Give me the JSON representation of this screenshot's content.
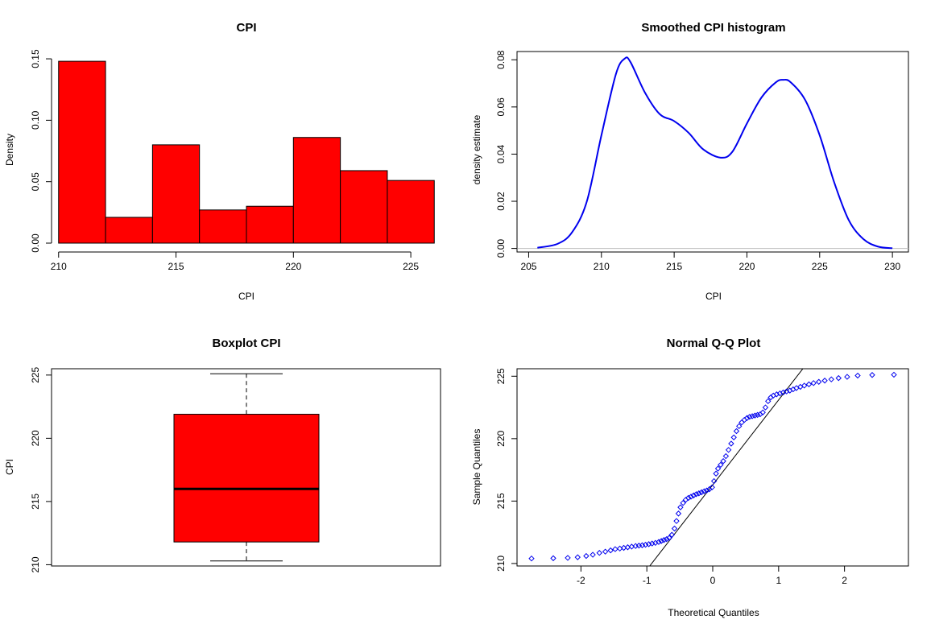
{
  "colors": {
    "bar_fill": "#ff0000",
    "density_line": "#0000ee",
    "qq_points": "#0000ee",
    "zero_line": "#bebebe"
  },
  "chart_data": [
    {
      "type": "bar",
      "title": "CPI",
      "xlabel": "CPI",
      "ylabel": "Density",
      "bin_edges": [
        210,
        212,
        214,
        216,
        218,
        220,
        222,
        224,
        226
      ],
      "values": [
        0.148,
        0.021,
        0.08,
        0.027,
        0.03,
        0.086,
        0.059,
        0.051
      ],
      "xticks": [
        210,
        215,
        220,
        225
      ],
      "yticks": [
        0.0,
        0.05,
        0.1,
        0.15
      ],
      "ytick_labels": [
        "0.00",
        "0.05",
        "0.10",
        "0.15"
      ],
      "xlim": [
        209.7,
        226.3
      ],
      "ylim": [
        0,
        0.152
      ]
    },
    {
      "type": "line",
      "title": "Smoothed CPI histogram",
      "xlabel": "CPI",
      "ylabel": "density estimate",
      "x": [
        205.6,
        207,
        208,
        209,
        210,
        211,
        211.6,
        212,
        213,
        214,
        215,
        216,
        217,
        218.2,
        219,
        220,
        221,
        222,
        222.5,
        223,
        224,
        225,
        226,
        227,
        228,
        229,
        230
      ],
      "y": [
        0.0003,
        0.002,
        0.007,
        0.02,
        0.048,
        0.074,
        0.0805,
        0.079,
        0.066,
        0.057,
        0.054,
        0.049,
        0.042,
        0.0385,
        0.041,
        0.053,
        0.064,
        0.0705,
        0.0715,
        0.0705,
        0.063,
        0.048,
        0.028,
        0.012,
        0.004,
        0.0008,
        0.0001
      ],
      "xticks": [
        205,
        210,
        215,
        220,
        225,
        230
      ],
      "yticks": [
        0.0,
        0.02,
        0.04,
        0.06,
        0.08
      ],
      "ytick_labels": [
        "0.00",
        "0.02",
        "0.04",
        "0.06",
        "0.08"
      ],
      "xlim": [
        204.2,
        231.1
      ],
      "ylim": [
        -0.0015,
        0.0835
      ]
    },
    {
      "type": "boxplot",
      "title": "Boxplot CPI",
      "ylabel": "CPI",
      "whisker_low": 210.3,
      "q1": 211.8,
      "median": 216.0,
      "q3": 221.9,
      "whisker_high": 225.1,
      "yticks": [
        210,
        215,
        220,
        225
      ],
      "ylim": [
        209.9,
        225.5
      ]
    },
    {
      "type": "scatter",
      "title": "Normal Q-Q Plot",
      "xlabel": "Theoretical Quantiles",
      "ylabel": "Sample Quantiles",
      "ref_line": {
        "intercept": 216.3,
        "slope": 6.8
      },
      "points": [
        [
          -2.75,
          210.4
        ],
        [
          -2.42,
          210.42
        ],
        [
          -2.2,
          210.45
        ],
        [
          -2.05,
          210.5
        ],
        [
          -1.92,
          210.6
        ],
        [
          -1.82,
          210.7
        ],
        [
          -1.72,
          210.85
        ],
        [
          -1.63,
          210.95
        ],
        [
          -1.55,
          211.05
        ],
        [
          -1.48,
          211.15
        ],
        [
          -1.41,
          211.2
        ],
        [
          -1.35,
          211.25
        ],
        [
          -1.29,
          211.3
        ],
        [
          -1.23,
          211.35
        ],
        [
          -1.17,
          211.4
        ],
        [
          -1.12,
          211.43
        ],
        [
          -1.07,
          211.46
        ],
        [
          -1.02,
          211.5
        ],
        [
          -0.97,
          211.55
        ],
        [
          -0.92,
          211.6
        ],
        [
          -0.87,
          211.65
        ],
        [
          -0.82,
          211.72
        ],
        [
          -0.78,
          211.8
        ],
        [
          -0.74,
          211.88
        ],
        [
          -0.7,
          211.95
        ],
        [
          -0.66,
          212.05
        ],
        [
          -0.62,
          212.3
        ],
        [
          -0.58,
          212.8
        ],
        [
          -0.55,
          213.4
        ],
        [
          -0.52,
          214.0
        ],
        [
          -0.49,
          214.5
        ],
        [
          -0.45,
          214.85
        ],
        [
          -0.41,
          215.1
        ],
        [
          -0.37,
          215.25
        ],
        [
          -0.33,
          215.35
        ],
        [
          -0.29,
          215.45
        ],
        [
          -0.25,
          215.55
        ],
        [
          -0.21,
          215.62
        ],
        [
          -0.17,
          215.7
        ],
        [
          -0.13,
          215.78
        ],
        [
          -0.09,
          215.85
        ],
        [
          -0.05,
          215.95
        ],
        [
          -0.01,
          216.1
        ],
        [
          0.02,
          216.6
        ],
        [
          0.05,
          217.2
        ],
        [
          0.08,
          217.6
        ],
        [
          0.12,
          217.9
        ],
        [
          0.16,
          218.2
        ],
        [
          0.2,
          218.6
        ],
        [
          0.24,
          219.1
        ],
        [
          0.28,
          219.6
        ],
        [
          0.32,
          220.1
        ],
        [
          0.36,
          220.6
        ],
        [
          0.4,
          221.0
        ],
        [
          0.44,
          221.3
        ],
        [
          0.48,
          221.5
        ],
        [
          0.52,
          221.65
        ],
        [
          0.56,
          221.75
        ],
        [
          0.6,
          221.8
        ],
        [
          0.64,
          221.85
        ],
        [
          0.68,
          221.9
        ],
        [
          0.72,
          221.95
        ],
        [
          0.76,
          222.1
        ],
        [
          0.8,
          222.5
        ],
        [
          0.84,
          223.0
        ],
        [
          0.88,
          223.3
        ],
        [
          0.92,
          223.45
        ],
        [
          0.97,
          223.55
        ],
        [
          1.02,
          223.62
        ],
        [
          1.07,
          223.7
        ],
        [
          1.12,
          223.78
        ],
        [
          1.17,
          223.85
        ],
        [
          1.22,
          223.95
        ],
        [
          1.27,
          224.05
        ],
        [
          1.33,
          224.15
        ],
        [
          1.39,
          224.25
        ],
        [
          1.46,
          224.35
        ],
        [
          1.53,
          224.45
        ],
        [
          1.61,
          224.55
        ],
        [
          1.7,
          224.65
        ],
        [
          1.8,
          224.75
        ],
        [
          1.91,
          224.85
        ],
        [
          2.04,
          224.95
        ],
        [
          2.2,
          225.05
        ],
        [
          2.42,
          225.1
        ],
        [
          2.75,
          225.12
        ]
      ],
      "xticks": [
        -2,
        -1,
        0,
        1,
        2
      ],
      "yticks": [
        210,
        215,
        220,
        225
      ],
      "xlim": [
        -2.97,
        2.97
      ],
      "ylim": [
        209.8,
        225.6
      ]
    }
  ]
}
